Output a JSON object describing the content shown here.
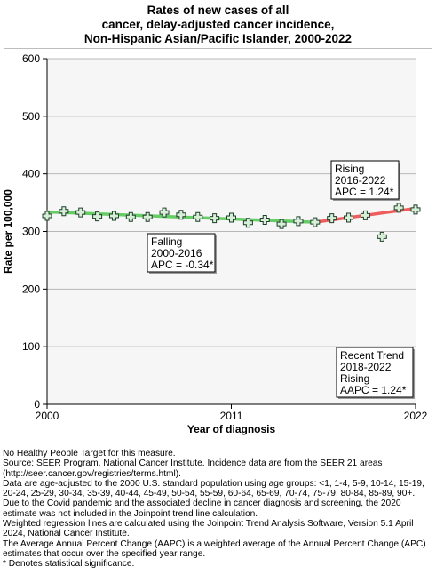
{
  "title_lines": [
    "Rates of new cases of all",
    "cancer, delay-adjusted cancer incidence,",
    "Non-Hispanic Asian/Pacific Islander,  2000-2022"
  ],
  "chart_data": {
    "type": "scatter",
    "xlabel": "Year of diagnosis",
    "ylabel": "Rate per 100,000",
    "xlim": [
      2000,
      2022
    ],
    "ylim": [
      0,
      600
    ],
    "x_ticks": [
      "2000",
      "2011",
      "2022"
    ],
    "y_ticks": [
      "0",
      "100",
      "200",
      "300",
      "400",
      "500",
      "600"
    ],
    "grid": true,
    "series": [
      {
        "x": [
          2000,
          2001,
          2002,
          2003,
          2004,
          2005,
          2006,
          2007,
          2008,
          2009,
          2010,
          2011,
          2012,
          2013,
          2014,
          2015,
          2016,
          2017,
          2018,
          2019,
          2020,
          2021,
          2022
        ],
        "values": [
          327,
          335,
          333,
          326,
          327,
          325,
          325,
          333,
          329,
          325,
          323,
          324,
          315,
          320,
          313,
          318,
          316,
          323,
          324,
          328,
          291,
          341,
          338
        ]
      }
    ],
    "trend_segments": [
      {
        "x": [
          2000,
          2016
        ],
        "y": [
          334,
          316
        ],
        "color": "#66cc66"
      },
      {
        "x": [
          2016,
          2022
        ],
        "y": [
          316,
          340
        ],
        "color": "#ee5c5c"
      }
    ],
    "annotations": [
      {
        "lines": [
          "Rising",
          "2016-2022",
          "APC =  1.24*"
        ],
        "position": "upper-right"
      },
      {
        "lines": [
          "Falling",
          "2000-2016",
          "APC = -0.34*"
        ],
        "position": "middle-left"
      },
      {
        "lines": [
          "Recent Trend",
          "2018-2022",
          "Rising",
          "AAPC =  1.24*"
        ],
        "position": "bottom-right"
      }
    ]
  },
  "notes": [
    "No Healthy People Target for this measure.",
    "Source: SEER Program, National Cancer Institute. Incidence data are from the SEER 21 areas (http://seer.cancer.gov/registries/terms.html).",
    "Data are age-adjusted to the 2000 U.S. standard population using age groups: <1, 1-4, 5-9, 10-14, 15-19, 20-24, 25-29, 30-34, 35-39, 40-44, 45-49, 50-54, 55-59, 60-64, 65-69, 70-74, 75-79, 80-84, 85-89, 90+.",
    "Due to the Covid pandemic and the associated decline in cancer diagnosis and screening, the 2020 estimate was not included in the Joinpoint trend line calculation.",
    "Weighted regression lines are calculated using the Joinpoint Trend Analysis Software, Version 5.1 April 2024, National Cancer Institute.",
    "The Average Annual Percent Change (AAPC) is a weighted average of the Annual Percent Change (APC) estimates that occur over the specified year range.",
    "* Denotes statistical significance."
  ],
  "colors": {
    "plot_bg": "#f6f6f6",
    "grid": "#b8b8b8",
    "falling_trend": "#66cc66",
    "rising_trend": "#ee5c5c",
    "marker_fill": "#d7efd7",
    "marker_stroke": "#1e3e2a"
  }
}
